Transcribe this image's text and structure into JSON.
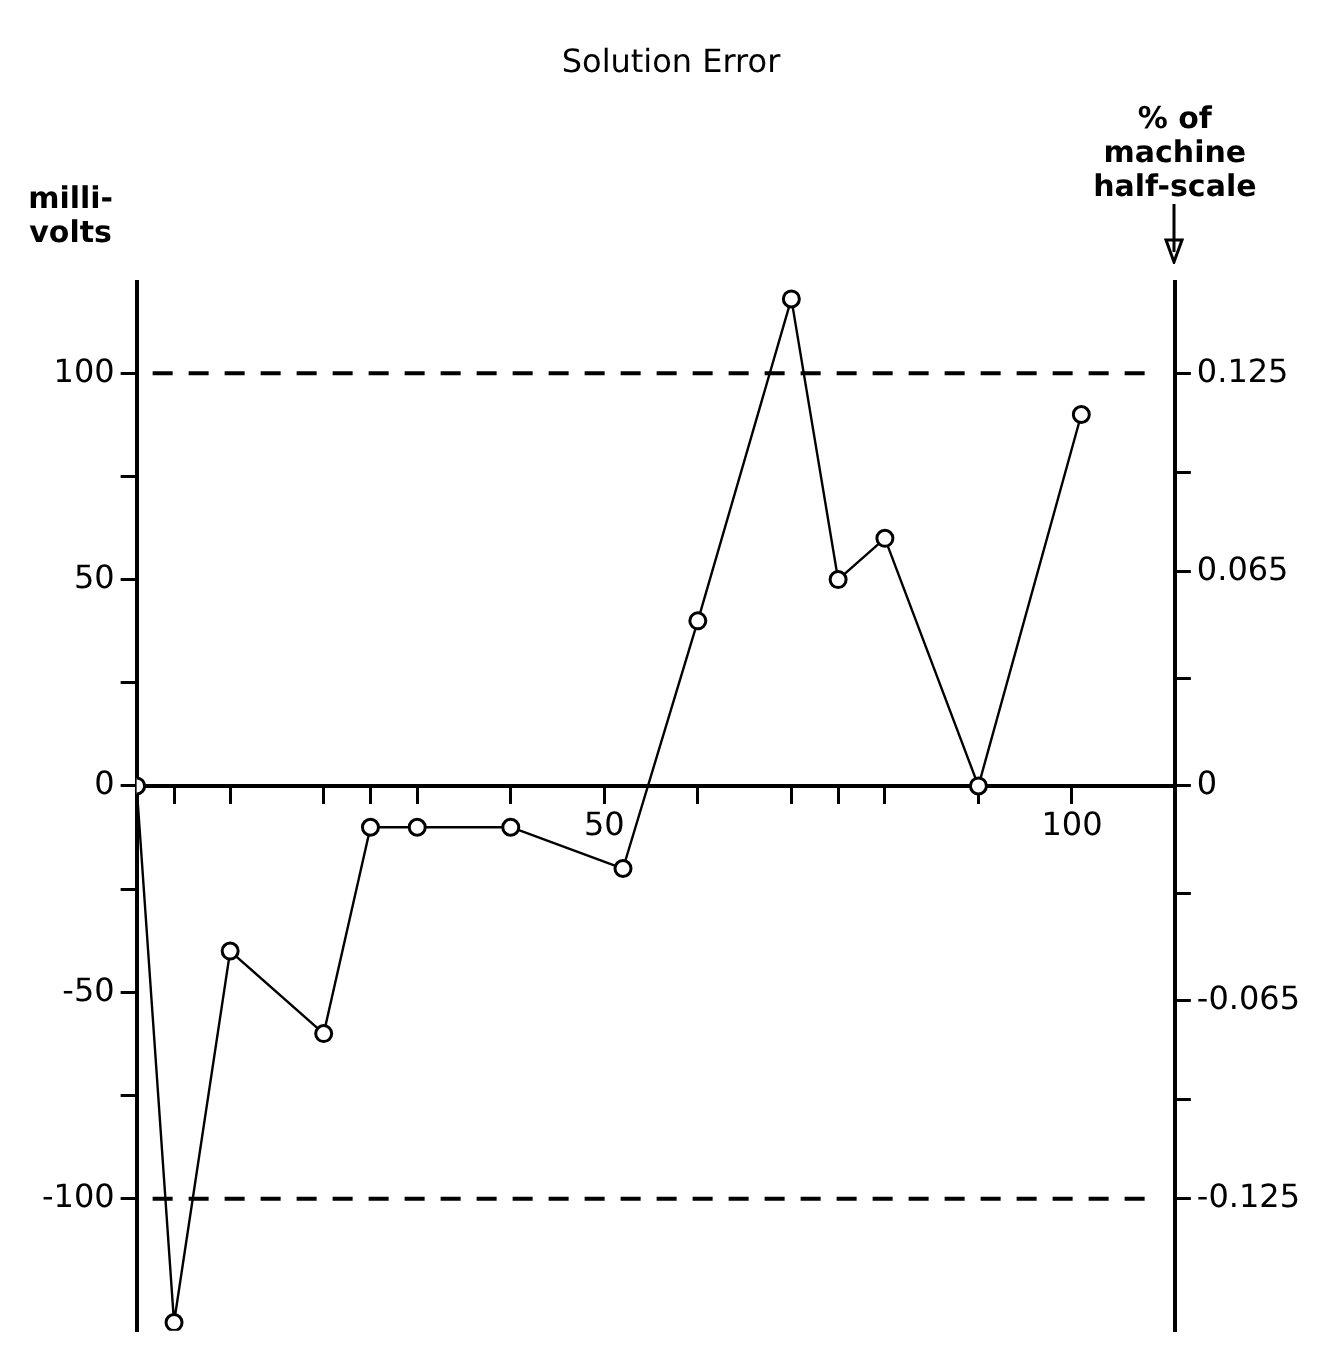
{
  "chart_data": {
    "type": "line",
    "title": "Solution Error",
    "ylabel": "milli-volts",
    "y2label": "% of machine half-scale",
    "x": [
      0,
      4,
      10,
      20,
      25,
      30,
      40,
      52,
      60,
      70,
      75,
      80,
      90,
      101
    ],
    "series": [
      {
        "color": "#000000",
        "values": [
          0,
          -130,
          -40,
          -60,
          -10,
          -10,
          -10,
          -20,
          40,
          118,
          50,
          60,
          0,
          90
        ]
      }
    ],
    "xlim": [
      0,
      111
    ],
    "xticks": [
      {
        "value": 4,
        "label": null
      },
      {
        "value": 10,
        "label": null
      },
      {
        "value": 20,
        "label": null
      },
      {
        "value": 25,
        "label": null
      },
      {
        "value": 30,
        "label": null
      },
      {
        "value": 40,
        "label": null
      },
      50,
      {
        "value": 60,
        "label": null
      },
      {
        "value": 70,
        "label": null
      },
      {
        "value": 75,
        "label": null
      },
      {
        "value": 80,
        "label": null
      },
      {
        "value": 90,
        "label": null
      },
      100
    ],
    "ylim": [
      -132,
      122
    ],
    "yticks": [
      -100,
      {
        "value": -75,
        "label": null
      },
      -50,
      {
        "value": -25,
        "label": null
      },
      0,
      {
        "value": 25,
        "label": null
      },
      50,
      {
        "value": 75,
        "label": null
      },
      100
    ],
    "y2lim": [
      -0.165,
      0.1525
    ],
    "y2ticks": [
      -0.125,
      {
        "value": -0.095,
        "label": null
      },
      -0.065,
      {
        "value": -0.0325,
        "label": null
      },
      0,
      {
        "value": 0.0325,
        "label": null
      },
      0.065,
      {
        "value": 0.095,
        "label": null
      },
      0.125
    ],
    "ref_lines": [
      {
        "axis": "y",
        "value": 100,
        "line_style": "dashed",
        "color": "#000000"
      },
      {
        "axis": "y",
        "value": -100,
        "line_style": "dashed",
        "color": "#000000"
      }
    ],
    "grid": false,
    "legend": false,
    "marker": "circle",
    "line_style": "solid"
  }
}
